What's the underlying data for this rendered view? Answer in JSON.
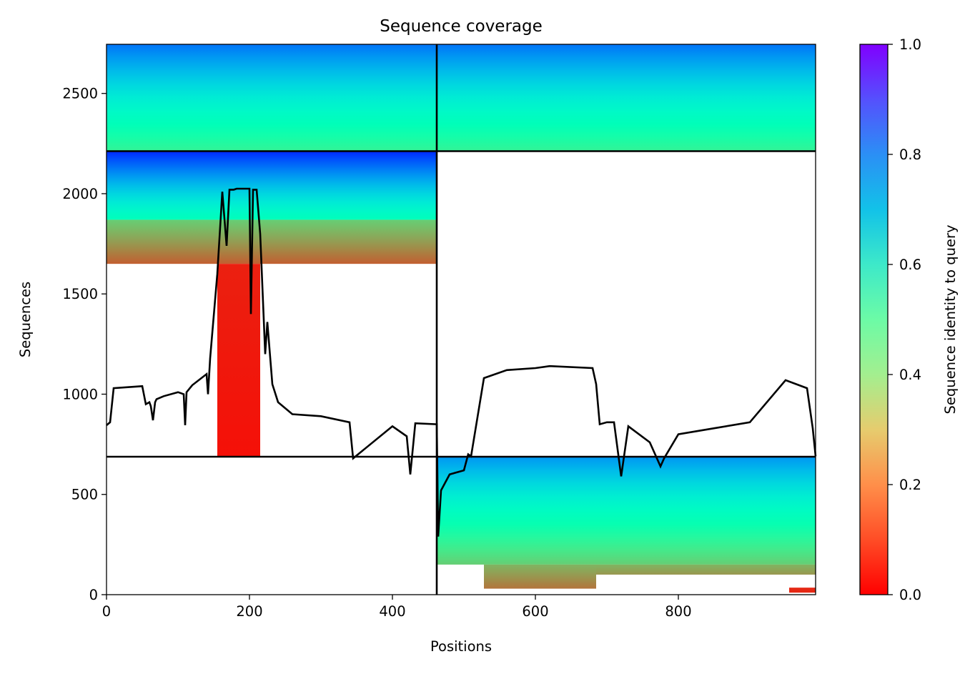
{
  "chart_data": {
    "type": "heatmap",
    "title": "Sequence coverage",
    "xlabel": "Positions",
    "ylabel": "Sequences",
    "xlim": [
      0,
      992
    ],
    "ylim": [
      0,
      2745
    ],
    "xticks": [
      0,
      200,
      400,
      600,
      800
    ],
    "yticks": [
      0,
      500,
      1000,
      1500,
      2000,
      2500
    ],
    "grid": false,
    "colorbar": {
      "label": "Sequence identity to query",
      "colormap": "rainbow_r",
      "range": [
        0.0,
        1.0
      ],
      "ticks": [
        0.0,
        0.2,
        0.4,
        0.6,
        0.8,
        1.0
      ],
      "tick_labels": [
        "0.0",
        "0.2",
        "0.4",
        "0.6",
        "0.8",
        "1.0"
      ]
    },
    "chain_boundaries": {
      "position": 462,
      "sequences": [
        688,
        2212
      ]
    },
    "coverage_blocks": [
      {
        "x": [
          0,
          462
        ],
        "y": [
          2212,
          2745
        ],
        "identity": [
          0.85,
          0.4
        ]
      },
      {
        "x": [
          462,
          992
        ],
        "y": [
          2212,
          2745
        ],
        "identity": [
          0.85,
          0.4
        ]
      },
      {
        "x": [
          0,
          462
        ],
        "y": [
          1870,
          2212
        ],
        "identity": [
          0.95,
          0.52
        ]
      },
      {
        "x": [
          0,
          462
        ],
        "y": [
          1650,
          1870
        ],
        "identity": [
          0.3,
          0.12
        ]
      },
      {
        "x": [
          155,
          215
        ],
        "y": [
          688,
          1650
        ],
        "identity": [
          0.04,
          0.02
        ]
      },
      {
        "x": [
          462,
          992
        ],
        "y": [
          150,
          688
        ],
        "identity": [
          0.8,
          0.3
        ]
      },
      {
        "x": [
          528,
          685
        ],
        "y": [
          30,
          150
        ],
        "identity": [
          0.25,
          0.15
        ]
      },
      {
        "x": [
          685,
          992
        ],
        "y": [
          100,
          150
        ],
        "identity": [
          0.25,
          0.2
        ]
      },
      {
        "x": [
          955,
          992
        ],
        "y": [
          10,
          35
        ],
        "identity": [
          0.05,
          0.05
        ]
      }
    ],
    "coverage_line": {
      "x": [
        0,
        5,
        10,
        30,
        50,
        55,
        60,
        62,
        65,
        68,
        70,
        80,
        100,
        108,
        110,
        112,
        120,
        140,
        142,
        145,
        155,
        162,
        168,
        172,
        178,
        182,
        200,
        202,
        205,
        210,
        215,
        222,
        225,
        232,
        240,
        260,
        300,
        340,
        345,
        400,
        420,
        425,
        432,
        462,
        464,
        468,
        480,
        500,
        506,
        510,
        528,
        560,
        600,
        620,
        680,
        685,
        690,
        700,
        710,
        720,
        730,
        760,
        775,
        780,
        800,
        850,
        900,
        950,
        980,
        988,
        992
      ],
      "y": [
        845,
        860,
        1030,
        1035,
        1040,
        950,
        960,
        940,
        870,
        960,
        975,
        990,
        1010,
        1000,
        845,
        1010,
        1045,
        1100,
        1000,
        1180,
        1600,
        2010,
        1740,
        2020,
        2020,
        2025,
        2025,
        1400,
        2020,
        2020,
        1800,
        1200,
        1360,
        1050,
        960,
        900,
        890,
        860,
        680,
        840,
        790,
        600,
        855,
        850,
        290,
        520,
        600,
        620,
        700,
        690,
        1080,
        1120,
        1130,
        1140,
        1130,
        1050,
        850,
        860,
        860,
        590,
        840,
        760,
        640,
        680,
        800,
        830,
        860,
        1070,
        1030,
        830,
        690
      ]
    }
  }
}
